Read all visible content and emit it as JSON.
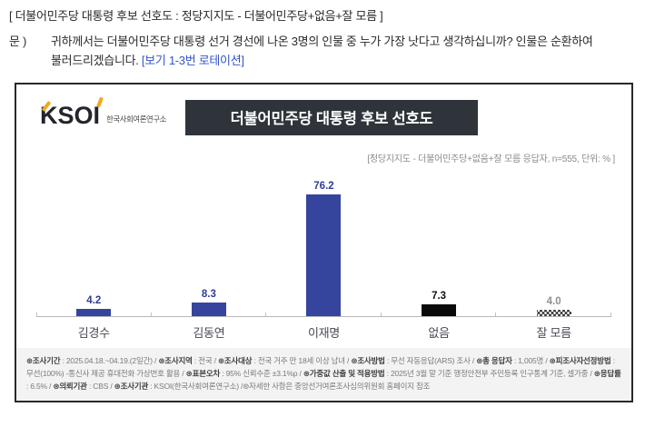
{
  "page": {
    "bracket_title": "[ 더불어민주당 대통령 후보 선호도 : 정당지지도 - 더불어민주당+없음+잘 모름 ]",
    "question_label": "문 )",
    "question_text": "귀하께서는 더불어민주당 대통령 선거 경선에 나온 3명의 인물 중 누가 가장 낫다고 생각하십니까? 인물은 순환하여 불러드리겠습니다. ",
    "question_link": "[보기 1-3번 로테이션]"
  },
  "panel": {
    "logo_text": "KSOI",
    "logo_org": "한국사회여론연구소",
    "title": "더불어민주당 대통령 후보 선호도",
    "annotation": "[정당지지도 - 더불어민주당+없음+잘 모름 응답자, n=555, 단위: % ]"
  },
  "chart_data": {
    "type": "bar",
    "title": "더불어민주당 대통령 후보 선호도",
    "categories": [
      "김경수",
      "김동연",
      "이재명",
      "없음",
      "잘 모름"
    ],
    "values": [
      4.2,
      8.3,
      76.2,
      7.3,
      4.0
    ],
    "value_labels": [
      "4.2",
      "8.3",
      "76.2",
      "7.3",
      "4.0"
    ],
    "bar_styles": [
      "blue",
      "blue",
      "blue",
      "black",
      "hatch"
    ],
    "unit": "%",
    "n": 555,
    "ylim": [
      0,
      100
    ],
    "grid": "off",
    "legend": "none",
    "colors": {
      "blue": "#35459E",
      "black": "#0A0A0A",
      "hatch": "black-crosshatch-on-white"
    }
  },
  "footer": {
    "items": [
      {
        "key": "⊛조사기간",
        "value": " : 2025.04.18.~04.19.(2일간)  / "
      },
      {
        "key": "⊛조사지역",
        "value": " : 전국 / "
      },
      {
        "key": "⊛조사대상",
        "value": " : 전국 거주 만 18세 이상 남녀 / "
      },
      {
        "key": "⊛조사방법",
        "value": " : 무선 자동응답(ARS) 조사 / "
      },
      {
        "key": "⊛총 응답자",
        "value": " : 1,005명 / "
      },
      {
        "key": "⊛피조사자선정방법",
        "value": " : 무선(100%) -통신사 제공 휴대전화 가상번호 활용 / "
      },
      {
        "key": "⊛표본오차",
        "value": " : 95% 신뢰수준 ±3.1%p / "
      },
      {
        "key": "⊛가중값 산출 및 적용방법",
        "value": " : 2025년 3월 말 기준 행정안전부 주민등록 인구통계 기준, 셀가중 / "
      },
      {
        "key": "⊛응답률",
        "value": " : 6.5% / "
      },
      {
        "key": "⊛의뢰기관",
        "value": " : CBS / "
      },
      {
        "key": "⊛조사기관",
        "value": " : KSOI(한국사회여론연구소) /"
      },
      {
        "key": "",
        "value": "⊛자세한 사항은 중앙선거여론조사심의위원회 홈페이지 참조"
      }
    ]
  }
}
